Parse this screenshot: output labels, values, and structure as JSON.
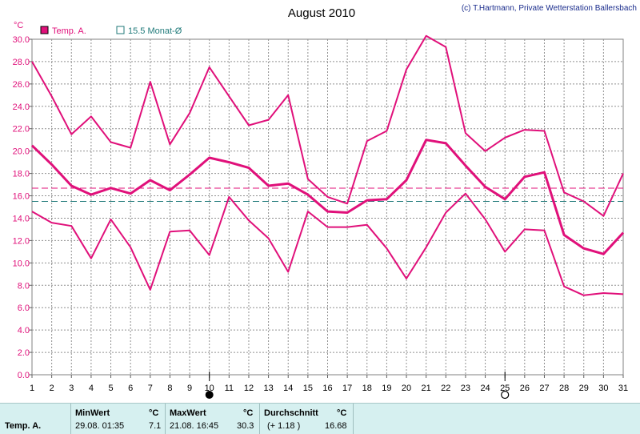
{
  "chart_data": {
    "type": "line",
    "title": "August 2010",
    "credit": "(c) T.Hartmann, Private Wetterstation Ballersbach",
    "ylabel": "°C",
    "xlabel": "",
    "ylim": [
      0,
      30
    ],
    "yticks": [
      "0.0",
      "2.0",
      "4.0",
      "6.0",
      "8.0",
      "10.0",
      "12.0",
      "14.0",
      "16.0",
      "18.0",
      "20.0",
      "22.0",
      "24.0",
      "26.0",
      "28.0",
      "30.0"
    ],
    "x": [
      "1",
      "2",
      "3",
      "4",
      "5",
      "6",
      "7",
      "8",
      "9",
      "10",
      "11",
      "12",
      "13",
      "14",
      "15",
      "16",
      "17",
      "18",
      "19",
      "20",
      "21",
      "22",
      "23",
      "24",
      "25",
      "26",
      "27",
      "28",
      "29",
      "30",
      "31"
    ],
    "grid": true,
    "legend": [
      {
        "label": "Temp. A.",
        "color": "#e0107a",
        "marker": "filled-square"
      },
      {
        "label": "15.5 Monat-Ø",
        "color": "#207a7a",
        "marker": "outline-square"
      }
    ],
    "series": [
      {
        "name": "Temp. A.",
        "role": "max",
        "color": "#e0107a",
        "values": [
          28.0,
          24.9,
          21.5,
          23.1,
          20.8,
          20.3,
          26.2,
          20.6,
          23.4,
          27.5,
          24.9,
          22.3,
          22.8,
          25.0,
          17.5,
          15.9,
          15.3,
          20.9,
          21.8,
          27.3,
          30.3,
          29.3,
          21.6,
          20.0,
          21.2,
          21.9,
          21.8,
          16.3,
          15.5,
          14.2,
          18.0
        ]
      },
      {
        "name": "Temp. A.",
        "role": "avg",
        "color": "#e0107a",
        "values": [
          20.5,
          18.8,
          16.9,
          16.1,
          16.7,
          16.2,
          17.4,
          16.5,
          17.9,
          19.4,
          19.0,
          18.5,
          16.9,
          17.1,
          16.1,
          14.6,
          14.5,
          15.6,
          15.7,
          17.4,
          21.0,
          20.7,
          18.7,
          16.8,
          15.7,
          17.7,
          18.1,
          12.5,
          11.3,
          10.8,
          12.7
        ]
      },
      {
        "name": "Temp. A.",
        "role": "min",
        "color": "#e0107a",
        "values": [
          14.6,
          13.6,
          13.3,
          10.4,
          13.9,
          11.4,
          7.6,
          12.8,
          12.9,
          10.7,
          15.9,
          13.8,
          12.2,
          9.2,
          14.6,
          13.2,
          13.2,
          13.4,
          11.3,
          8.6,
          11.4,
          14.5,
          16.2,
          13.9,
          11.0,
          13.0,
          12.9,
          7.9,
          7.1,
          7.3,
          7.2
        ]
      }
    ],
    "reference_lines": [
      {
        "name": "Durchschnitt",
        "value": 16.68,
        "color": "#e0107a",
        "style": "dashed"
      },
      {
        "name": "15.5 Monat-Ø",
        "value": 15.5,
        "color": "#207a7a",
        "style": "dashed"
      }
    ],
    "moon_phases": [
      {
        "day": 10,
        "phase": "new-moon",
        "symbol": "●"
      },
      {
        "day": 25,
        "phase": "full-moon",
        "symbol": "○"
      }
    ]
  },
  "stats_table": {
    "row_label": "Temp. A.",
    "min": {
      "header": "MinWert",
      "unit": "°C",
      "time": "29.08.  01:35",
      "value": "7.1"
    },
    "max": {
      "header": "MaxWert",
      "unit": "°C",
      "time": "21.08.  16:45",
      "value": "30.3"
    },
    "avg": {
      "header": "Durchschnitt",
      "unit": "°C",
      "deviation": "(+ 1.18 )",
      "value": "16.68"
    }
  }
}
